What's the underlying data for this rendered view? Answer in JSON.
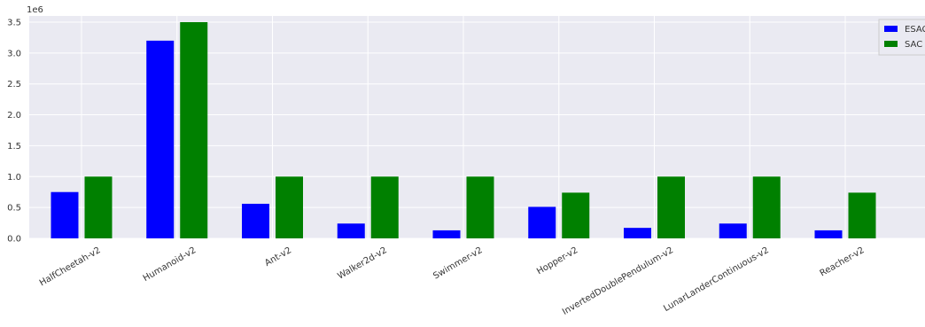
{
  "chart_data": {
    "type": "bar",
    "title": "",
    "xlabel": "",
    "ylabel": "",
    "y_multiplier": "1e6",
    "ylim": [
      0,
      3.6
    ],
    "yticks": [
      "0.0",
      "0.5",
      "1.0",
      "1.5",
      "2.0",
      "2.5",
      "3.0",
      "3.5"
    ],
    "grid": true,
    "legend_position": "top-right",
    "categories": [
      "HalfCheetah-v2",
      "Humanoid-v2",
      "Ant-v2",
      "Walker2d-v2",
      "Swimmer-v2",
      "Hopper-v2",
      "InvertedDoublePendulum-v2",
      "LunarLanderContinuous-v2",
      "Reacher-v2"
    ],
    "series": [
      {
        "name": "ESAC",
        "color": "#0000ff",
        "values": [
          0.75,
          3.2,
          0.56,
          0.24,
          0.13,
          0.51,
          0.17,
          0.24,
          0.13
        ]
      },
      {
        "name": "SAC",
        "color": "#008000",
        "values": [
          1.0,
          3.5,
          1.0,
          1.0,
          1.0,
          0.74,
          1.0,
          1.0,
          0.74
        ]
      }
    ],
    "background_color": "#eaeaf2",
    "grid_color": "#ffffff"
  }
}
